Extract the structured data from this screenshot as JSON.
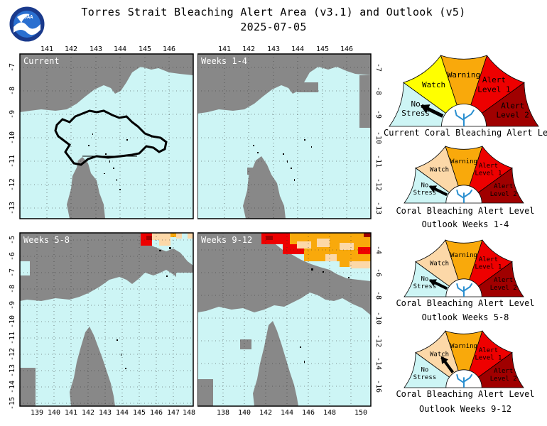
{
  "header": {
    "title": "Torres Strait Bleaching Alert Area (v3.1) and Outlook (v5)",
    "date": "2025-07-05",
    "logo_text": "NOAA"
  },
  "colors": {
    "ocean": "#cdf5f5",
    "land": "#888888",
    "no_stress": "#cdf5f5",
    "watch": "#ffff00",
    "watch_outlook": "#fcd8a8",
    "warning": "#f9a90b",
    "alert1": "#ee0000",
    "alert2": "#a00000"
  },
  "maps": {
    "current": {
      "label": "Current",
      "lon_ticks": [
        "141",
        "142",
        "143",
        "144",
        "145",
        "146"
      ],
      "lat_ticks": [
        "-7",
        "-8",
        "-9",
        "-10",
        "-11",
        "-12",
        "-13"
      ]
    },
    "weeks_1_4": {
      "label": "Weeks 1-4",
      "lon_ticks": [
        "141",
        "142",
        "143",
        "144",
        "145",
        "146"
      ],
      "lat_ticks": [
        "-7",
        "-8",
        "-9",
        "-10",
        "-11",
        "-12",
        "-13"
      ]
    },
    "weeks_5_8": {
      "label": "Weeks 5-8",
      "lon_ticks": [
        "139",
        "140",
        "141",
        "142",
        "143",
        "144",
        "145",
        "146",
        "147",
        "148"
      ],
      "lat_ticks": [
        "-5",
        "-6",
        "-7",
        "-8",
        "-9",
        "-10",
        "-11",
        "-12",
        "-13",
        "-14",
        "-15"
      ]
    },
    "weeks_9_12": {
      "label": "Weeks 9-12",
      "lon_ticks": [
        "138",
        "140",
        "142",
        "144",
        "146",
        "148",
        "150"
      ],
      "lat_ticks": [
        "-4",
        "-6",
        "-8",
        "-10",
        "-12",
        "-14",
        "-16"
      ]
    }
  },
  "gauges": [
    {
      "id": "current",
      "caption_line1": "Current Coral Bleaching Alert Level",
      "caption_line2": "",
      "current_level": "No Stress",
      "watch_style": "current",
      "labels": {
        "no_stress_1": "No",
        "no_stress_2": "Stress",
        "watch": "Watch",
        "warning": "Warning",
        "alert1_1": "Alert",
        "alert1_2": "Level 1",
        "alert2_1": "Alert",
        "alert2_2": "Level 2"
      }
    },
    {
      "id": "weeks_1_4",
      "caption_line1": "Coral Bleaching Alert Level",
      "caption_line2": "Outlook Weeks 1-4",
      "current_level": "No Stress",
      "watch_style": "outlook",
      "labels": {
        "no_stress_1": "No",
        "no_stress_2": "Stress",
        "watch": "Watch",
        "warning": "Warning",
        "alert1_1": "Alert",
        "alert1_2": "Level 1",
        "alert2_1": "Alert",
        "alert2_2": "Level 2"
      }
    },
    {
      "id": "weeks_5_8",
      "caption_line1": "Coral Bleaching Alert Level",
      "caption_line2": "Outlook Weeks 5-8",
      "current_level": "No Stress",
      "watch_style": "outlook",
      "labels": {
        "no_stress_1": "No",
        "no_stress_2": "Stress",
        "watch": "Watch",
        "warning": "Warning",
        "alert1_1": "Alert",
        "alert1_2": "Level 1",
        "alert2_1": "Alert",
        "alert2_2": "Level 2"
      }
    },
    {
      "id": "weeks_9_12",
      "caption_line1": "Coral Bleaching Alert Level",
      "caption_line2": "Outlook Weeks 9-12",
      "current_level": "Watch",
      "watch_style": "outlook",
      "labels": {
        "no_stress_1": "No",
        "no_stress_2": "Stress",
        "watch": "Watch",
        "warning": "Warning",
        "alert1_1": "Alert",
        "alert1_2": "Level 1",
        "alert2_1": "Alert",
        "alert2_2": "Level 2"
      }
    }
  ]
}
